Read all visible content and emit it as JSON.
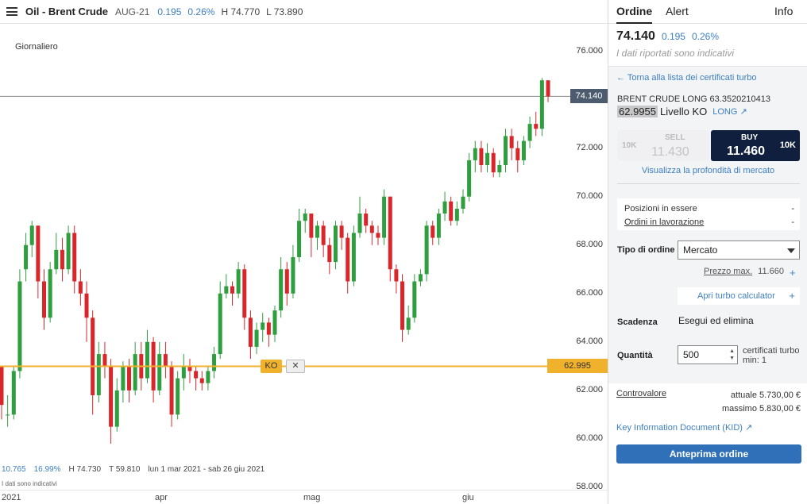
{
  "header": {
    "name": "Oil - Brent Crude",
    "code": "AUG-21",
    "change_abs": "0.195",
    "change_pct": "0.26%",
    "high": "H 74.770",
    "low": "L 73.890"
  },
  "chart": {
    "period": "Giornaliero",
    "current_price_tag": "74.140",
    "ko_level_tag": "62.995",
    "ko_chip": "KO",
    "ko_close": "✕",
    "stats": {
      "abs": "10.765",
      "pct": "16.99%",
      "high": "H 74.730",
      "low": "T 59.810",
      "range": "lun 1 mar 2021 - sab 26 giu 2021"
    },
    "note": "I dati sono indicativi",
    "colors": {
      "up": "#2e9e3f",
      "down": "#d9262b",
      "ko_line": "#f0b12c",
      "price_line": "#888888"
    }
  },
  "chart_data": {
    "type": "candlestick",
    "title": "",
    "y_ticks": [
      "76.000",
      "74.000",
      "72.000",
      "70.000",
      "68.000",
      "66.000",
      "64.000",
      "62.000",
      "60.000",
      "58.000"
    ],
    "x_ticks": [
      "2021",
      "apr",
      "mag",
      "giu"
    ],
    "ylim": [
      57.9,
      77.1
    ],
    "grid": false,
    "last_price": 74.14,
    "ko_level": 62.995,
    "series": [
      {
        "values": [
          [
            63.0,
            61.4,
            63.0,
            60.8
          ],
          [
            61.0,
            61.0,
            61.8,
            60.5
          ],
          [
            61.0,
            62.8,
            63.0,
            60.8
          ],
          [
            62.8,
            66.5,
            67.0,
            62.5
          ],
          [
            67.0,
            68.0,
            68.5,
            66.5
          ],
          [
            68.0,
            68.8,
            69.0,
            67.5
          ],
          [
            68.8,
            66.5,
            68.8,
            65.8
          ],
          [
            66.5,
            65.0,
            67.0,
            64.5
          ],
          [
            65.0,
            67.0,
            67.3,
            64.8
          ],
          [
            67.0,
            67.8,
            68.5,
            66.8
          ],
          [
            67.8,
            67.0,
            68.3,
            66.5
          ],
          [
            67.0,
            68.5,
            68.8,
            66.8
          ],
          [
            68.5,
            66.5,
            68.8,
            66.0
          ],
          [
            66.5,
            66.0,
            67.0,
            65.5
          ],
          [
            66.0,
            65.0,
            66.5,
            64.0
          ],
          [
            65.0,
            61.8,
            65.3,
            61.0
          ],
          [
            61.8,
            63.5,
            64.0,
            61.5
          ],
          [
            63.5,
            63.0,
            64.0,
            62.5
          ],
          [
            63.0,
            60.5,
            63.3,
            59.8
          ],
          [
            60.5,
            62.0,
            62.5,
            60.3
          ],
          [
            62.0,
            63.0,
            63.2,
            61.5
          ],
          [
            63.0,
            62.0,
            63.3,
            61.5
          ],
          [
            62.0,
            63.5,
            64.0,
            61.8
          ],
          [
            63.5,
            62.5,
            64.0,
            62.0
          ],
          [
            62.5,
            64.0,
            64.5,
            62.3
          ],
          [
            64.0,
            62.0,
            64.2,
            61.5
          ],
          [
            62.0,
            63.5,
            64.0,
            61.8
          ],
          [
            63.5,
            63.0,
            64.0,
            62.5
          ],
          [
            63.0,
            61.0,
            63.2,
            60.5
          ],
          [
            61.0,
            62.5,
            62.8,
            60.8
          ],
          [
            62.5,
            63.0,
            63.5,
            62.0
          ],
          [
            63.0,
            62.8,
            63.3,
            62.3
          ],
          [
            62.8,
            62.5,
            63.0,
            62.0
          ],
          [
            62.5,
            62.3,
            62.8,
            62.0
          ],
          [
            62.3,
            62.8,
            63.0,
            62.0
          ],
          [
            62.8,
            63.5,
            63.8,
            62.5
          ],
          [
            63.5,
            66.0,
            66.5,
            63.3
          ],
          [
            66.0,
            66.3,
            66.8,
            65.8
          ],
          [
            66.3,
            66.0,
            66.5,
            65.5
          ],
          [
            66.0,
            67.0,
            67.3,
            65.8
          ],
          [
            67.0,
            65.0,
            67.2,
            64.5
          ],
          [
            65.0,
            63.8,
            65.3,
            63.3
          ],
          [
            63.8,
            64.5,
            64.8,
            63.5
          ],
          [
            64.5,
            64.8,
            65.2,
            64.0
          ],
          [
            64.8,
            64.3,
            65.0,
            63.8
          ],
          [
            64.3,
            65.3,
            65.5,
            64.0
          ],
          [
            65.3,
            67.0,
            67.5,
            65.0
          ],
          [
            67.0,
            66.0,
            67.3,
            65.5
          ],
          [
            66.0,
            67.5,
            68.0,
            65.8
          ],
          [
            67.5,
            69.0,
            69.5,
            67.3
          ],
          [
            69.0,
            69.3,
            69.5,
            68.5
          ],
          [
            69.3,
            68.3,
            69.3,
            67.5
          ],
          [
            68.3,
            68.8,
            69.0,
            67.8
          ],
          [
            68.8,
            68.0,
            69.0,
            67.5
          ],
          [
            68.0,
            67.3,
            68.3,
            66.8
          ],
          [
            67.3,
            68.8,
            69.0,
            67.0
          ],
          [
            68.8,
            68.3,
            69.0,
            67.8
          ],
          [
            68.3,
            66.5,
            68.5,
            66.0
          ],
          [
            66.5,
            68.5,
            68.8,
            66.3
          ],
          [
            68.5,
            69.3,
            70.0,
            68.3
          ],
          [
            69.3,
            68.8,
            69.5,
            68.5
          ],
          [
            68.8,
            68.5,
            69.0,
            68.0
          ],
          [
            68.5,
            68.3,
            68.8,
            68.0
          ],
          [
            68.3,
            70.0,
            70.3,
            68.0
          ],
          [
            70.0,
            67.0,
            70.0,
            66.5
          ],
          [
            67.0,
            66.5,
            67.2,
            66.0
          ],
          [
            66.5,
            64.5,
            66.8,
            64.0
          ],
          [
            64.5,
            65.0,
            65.5,
            64.3
          ],
          [
            65.0,
            66.5,
            66.8,
            64.8
          ],
          [
            66.5,
            66.8,
            67.0,
            66.3
          ],
          [
            66.8,
            68.8,
            69.0,
            66.5
          ],
          [
            68.8,
            68.3,
            69.0,
            68.0
          ],
          [
            68.3,
            69.3,
            69.5,
            68.0
          ],
          [
            69.3,
            69.8,
            70.2,
            69.0
          ],
          [
            69.8,
            69.0,
            70.0,
            68.8
          ],
          [
            69.0,
            69.5,
            69.8,
            68.8
          ],
          [
            69.5,
            70.0,
            70.3,
            69.3
          ],
          [
            70.0,
            71.5,
            71.8,
            69.8
          ],
          [
            71.5,
            72.0,
            72.3,
            71.0
          ],
          [
            72.0,
            71.3,
            72.3,
            71.0
          ],
          [
            71.3,
            71.8,
            72.2,
            71.0
          ],
          [
            71.8,
            71.0,
            72.0,
            70.8
          ],
          [
            71.0,
            71.3,
            71.5,
            70.8
          ],
          [
            71.3,
            72.5,
            72.8,
            71.0
          ],
          [
            72.5,
            72.0,
            72.8,
            71.5
          ],
          [
            72.0,
            71.5,
            72.3,
            71.0
          ],
          [
            71.5,
            72.3,
            72.5,
            71.3
          ],
          [
            72.3,
            73.0,
            73.3,
            72.0
          ],
          [
            73.0,
            72.8,
            73.5,
            72.5
          ],
          [
            72.8,
            74.8,
            74.9,
            72.5
          ],
          [
            74.8,
            74.14,
            74.8,
            73.9
          ]
        ]
      }
    ]
  },
  "panel": {
    "tabs": [
      "Ordine",
      "Alert",
      "Info"
    ],
    "quote_price": "74.140",
    "quote_abs": "0.195",
    "quote_pct": "0.26%",
    "quote_note": "I dati riportati sono indicativi",
    "back_link": "Torna alla lista dei certificati turbo",
    "cert_name": "BRENT CRUDE LONG 63.3520210413",
    "ko_value": "62.9955",
    "ko_label": "Livello KO",
    "long_label": "LONG ↗",
    "sell": {
      "label": "SELL",
      "value": "11.430",
      "qty": "10K"
    },
    "buy": {
      "label": "BUY",
      "value": "11.460",
      "qty": "10K"
    },
    "depth_link": "Visualizza la profondità di mercato",
    "positions_label": "Posizioni in essere",
    "positions_value": "-",
    "orders_label": "Ordini in lavorazione",
    "orders_value": "-",
    "order_type_label": "Tipo di ordine",
    "order_type_value": "Mercato",
    "max_price_label": "Prezzo max.",
    "max_price_value": "11.660",
    "turbo_calc": "Apri turbo calculator",
    "expiry_label": "Scadenza",
    "expiry_value": "Esegui ed elimina",
    "qty_label": "Quantità",
    "qty_value": "500",
    "qty_note_1": "certificati turbo",
    "qty_note_2": "min: 1",
    "contro_label": "Controvalore",
    "contro_current": "attuale 5.730,00 €",
    "contro_max": "massimo 5.830,00 €",
    "kid_link": "Key Information Document (KID)",
    "preview_button": "Anteprima ordine"
  }
}
